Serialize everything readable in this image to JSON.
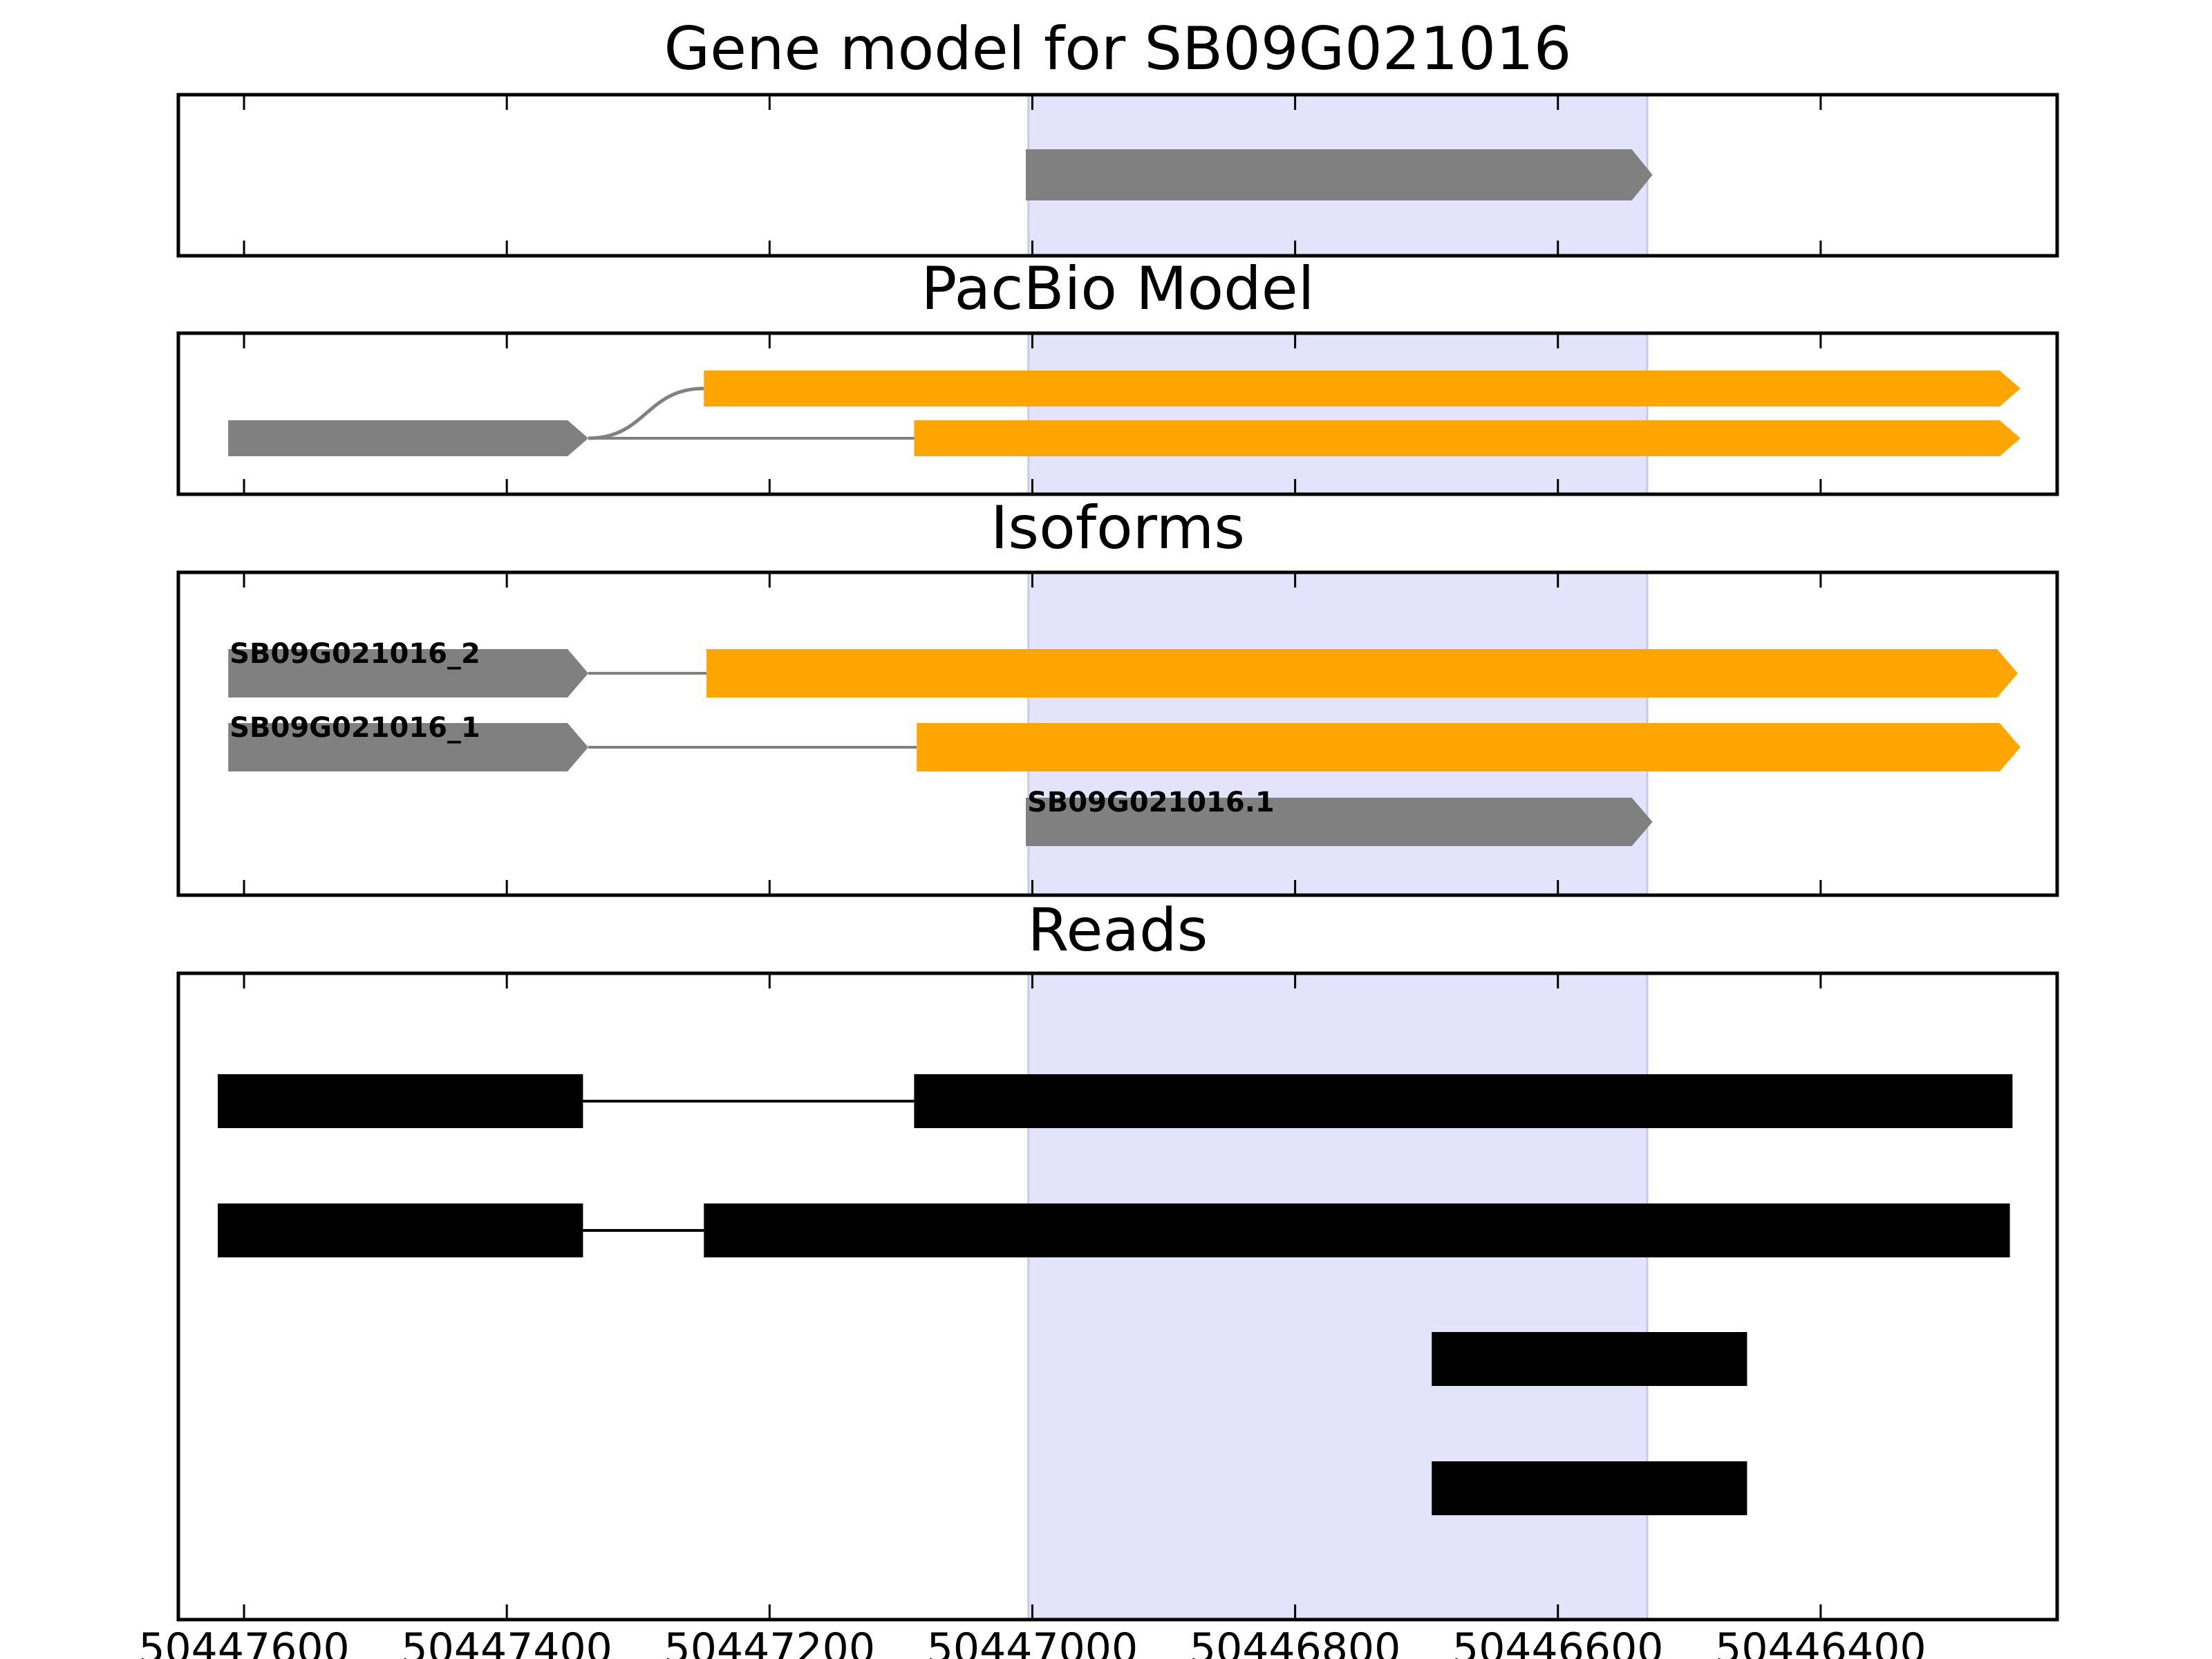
{
  "chart_data": {
    "type": "gene-track",
    "x_axis": {
      "reversed": true,
      "range": [
        50447650,
        50446220
      ],
      "ticks": [
        50447600,
        50447400,
        50447200,
        50447000,
        50446800,
        50446600,
        50446400
      ],
      "tick_labels": [
        "50447600",
        "50447400",
        "50447200",
        "50447000",
        "50446800",
        "50446600",
        "50446400"
      ]
    },
    "highlight": {
      "start": 50447003,
      "end": 50446532,
      "color": "#e3e3fc"
    },
    "colors": {
      "reference": "#808080",
      "pacbio": "#ffa500",
      "read": "#000000",
      "intron": "#808080"
    },
    "panels": [
      {
        "title": "Gene model for SB09G021016",
        "kind": "gene",
        "rows": 1,
        "tracks": [
          {
            "row": 0,
            "label": "",
            "exons": [
              {
                "start": 50447005,
                "end": 50446528,
                "color": "reference",
                "arrow": true
              }
            ]
          }
        ]
      },
      {
        "title": "PacBio Model",
        "kind": "pacbio",
        "rows": 2,
        "tracks": [
          {
            "row": 0,
            "label": "",
            "curved_intron": true,
            "exons": [
              {
                "start": 50447612,
                "end": 50447338,
                "color": "reference",
                "arrow": true,
                "row_override": 1
              },
              {
                "start": 50447250,
                "end": 50446248,
                "color": "pacbio",
                "arrow": true
              }
            ]
          },
          {
            "row": 1,
            "label": "",
            "exons": [
              {
                "start": 50447612,
                "end": 50447338,
                "color": "reference",
                "arrow": true
              },
              {
                "start": 50447090,
                "end": 50446248,
                "color": "pacbio",
                "arrow": true
              }
            ]
          }
        ]
      },
      {
        "title": "Isoforms",
        "kind": "isoforms",
        "rows": 3,
        "tracks": [
          {
            "row": 0,
            "label": "SB09G021016_2",
            "exons": [
              {
                "start": 50447612,
                "end": 50447338,
                "color": "reference",
                "arrow": true
              },
              {
                "start": 50447248,
                "end": 50446250,
                "color": "pacbio",
                "arrow": true
              }
            ]
          },
          {
            "row": 1,
            "label": "SB09G021016_1",
            "exons": [
              {
                "start": 50447612,
                "end": 50447338,
                "color": "reference",
                "arrow": true
              },
              {
                "start": 50447088,
                "end": 50446248,
                "color": "pacbio",
                "arrow": true
              }
            ]
          },
          {
            "row": 2,
            "label": "SB09G021016.1",
            "exons": [
              {
                "start": 50447005,
                "end": 50446528,
                "color": "reference",
                "arrow": true
              }
            ]
          }
        ]
      },
      {
        "title": "Reads",
        "kind": "reads",
        "rows": 4,
        "tracks": [
          {
            "row": 0,
            "label": "",
            "exons": [
              {
                "start": 50447620,
                "end": 50447342,
                "color": "read"
              },
              {
                "start": 50447090,
                "end": 50446254,
                "color": "read"
              }
            ]
          },
          {
            "row": 1,
            "label": "",
            "exons": [
              {
                "start": 50447620,
                "end": 50447342,
                "color": "read"
              },
              {
                "start": 50447250,
                "end": 50446256,
                "color": "read"
              }
            ]
          },
          {
            "row": 2,
            "label": "",
            "exons": [
              {
                "start": 50446696,
                "end": 50446456,
                "color": "read"
              }
            ]
          },
          {
            "row": 3,
            "label": "",
            "exons": [
              {
                "start": 50446696,
                "end": 50446456,
                "color": "read"
              }
            ]
          }
        ]
      }
    ]
  }
}
